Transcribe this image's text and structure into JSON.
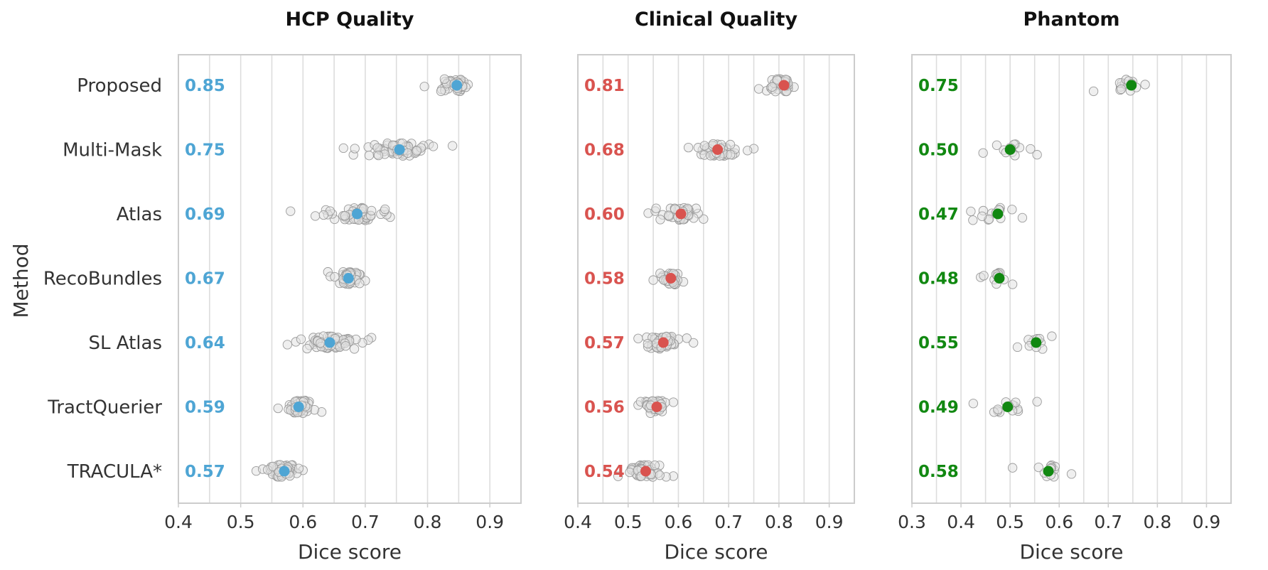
{
  "y_axis_label": "Method",
  "categories": [
    "Proposed",
    "Multi-Mask",
    "Atlas",
    "RecoBundles",
    "SL Atlas",
    "TractQuerier",
    "TRACULA*"
  ],
  "chart_data": [
    {
      "type": "scatter",
      "title": "HCP Quality",
      "xlabel": "Dice score",
      "ylabel": "Method",
      "xlim": [
        0.4,
        0.95
      ],
      "xticks": [
        "0.4",
        "0.5",
        "0.6",
        "0.7",
        "0.8",
        "0.9"
      ],
      "xtick_values": [
        0.4,
        0.5,
        0.6,
        0.7,
        0.8,
        0.9
      ],
      "grid": true,
      "color": "#4ea5d4",
      "mean_labels": [
        "0.85",
        "0.75",
        "0.69",
        "0.67",
        "0.64",
        "0.59",
        "0.57"
      ],
      "series": [
        {
          "category": "Proposed",
          "mean": 0.847,
          "min": 0.795,
          "max": 0.865,
          "n": 45
        },
        {
          "category": "Multi-Mask",
          "mean": 0.755,
          "min": 0.665,
          "max": 0.84,
          "n": 60
        },
        {
          "category": "Atlas",
          "mean": 0.687,
          "min": 0.58,
          "max": 0.74,
          "n": 60
        },
        {
          "category": "RecoBundles",
          "mean": 0.673,
          "min": 0.64,
          "max": 0.7,
          "n": 45
        },
        {
          "category": "SL Atlas",
          "mean": 0.643,
          "min": 0.575,
          "max": 0.71,
          "n": 60
        },
        {
          "category": "TractQuerier",
          "mean": 0.593,
          "min": 0.56,
          "max": 0.63,
          "n": 45
        },
        {
          "category": "TRACULA*",
          "mean": 0.57,
          "min": 0.525,
          "max": 0.6,
          "n": 55
        }
      ]
    },
    {
      "type": "scatter",
      "title": "Clinical Quality",
      "xlabel": "Dice score",
      "ylabel": "",
      "xlim": [
        0.4,
        0.95
      ],
      "xticks": [
        "0.4",
        "0.5",
        "0.6",
        "0.7",
        "0.8",
        "0.9"
      ],
      "xtick_values": [
        0.4,
        0.5,
        0.6,
        0.7,
        0.8,
        0.9
      ],
      "grid": true,
      "color": "#d9534f",
      "mean_labels": [
        "0.81",
        "0.68",
        "0.60",
        "0.58",
        "0.57",
        "0.56",
        "0.54"
      ],
      "series": [
        {
          "category": "Proposed",
          "mean": 0.81,
          "min": 0.76,
          "max": 0.83,
          "n": 40
        },
        {
          "category": "Multi-Mask",
          "mean": 0.678,
          "min": 0.62,
          "max": 0.75,
          "n": 45
        },
        {
          "category": "Atlas",
          "mean": 0.605,
          "min": 0.54,
          "max": 0.65,
          "n": 45
        },
        {
          "category": "RecoBundles",
          "mean": 0.585,
          "min": 0.55,
          "max": 0.61,
          "n": 40
        },
        {
          "category": "SL Atlas",
          "mean": 0.57,
          "min": 0.52,
          "max": 0.63,
          "n": 50
        },
        {
          "category": "TractQuerier",
          "mean": 0.557,
          "min": 0.52,
          "max": 0.59,
          "n": 40
        },
        {
          "category": "TRACULA*",
          "mean": 0.535,
          "min": 0.48,
          "max": 0.59,
          "n": 55
        }
      ]
    },
    {
      "type": "scatter",
      "title": "Phantom",
      "xlabel": "Dice score",
      "ylabel": "",
      "xlim": [
        0.3,
        0.95
      ],
      "xticks": [
        "0.3",
        "0.4",
        "0.5",
        "0.6",
        "0.7",
        "0.8",
        "0.9"
      ],
      "xtick_values": [
        0.3,
        0.4,
        0.5,
        0.6,
        0.7,
        0.8,
        0.9
      ],
      "grid": true,
      "color": "#118811",
      "mean_labels": [
        "0.75",
        "0.50",
        "0.47",
        "0.48",
        "0.55",
        "0.49",
        "0.58"
      ],
      "series": [
        {
          "category": "Proposed",
          "mean": 0.747,
          "min": 0.67,
          "max": 0.775,
          "n": 14
        },
        {
          "category": "Multi-Mask",
          "mean": 0.5,
          "min": 0.445,
          "max": 0.555,
          "n": 14
        },
        {
          "category": "Atlas",
          "mean": 0.475,
          "min": 0.42,
          "max": 0.525,
          "n": 14
        },
        {
          "category": "RecoBundles",
          "mean": 0.478,
          "min": 0.44,
          "max": 0.505,
          "n": 12
        },
        {
          "category": "SL Atlas",
          "mean": 0.553,
          "min": 0.515,
          "max": 0.585,
          "n": 12
        },
        {
          "category": "TractQuerier",
          "mean": 0.495,
          "min": 0.425,
          "max": 0.555,
          "n": 14
        },
        {
          "category": "TRACULA*",
          "mean": 0.578,
          "min": 0.505,
          "max": 0.625,
          "n": 14
        }
      ]
    }
  ]
}
